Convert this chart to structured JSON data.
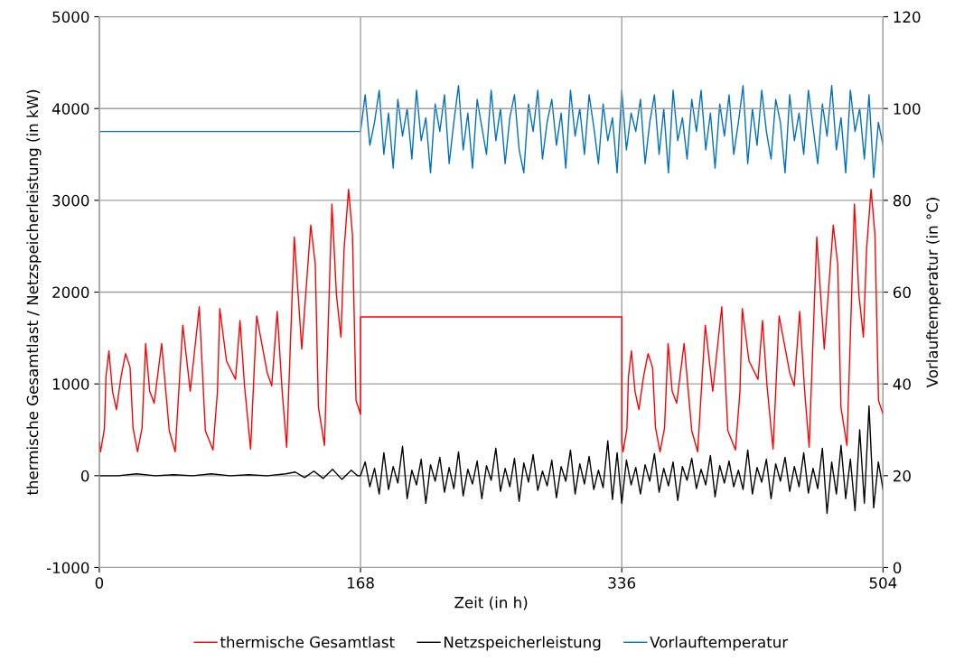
{
  "chart_data": {
    "type": "line",
    "xlabel": "Zeit (in h)",
    "ylabel": "thermische Gesamtlast / Netzspeicherleistung (in kW)",
    "y2label": "Vorlauftemperatur (in °C)",
    "xlim": [
      0,
      504
    ],
    "xticks": [
      0,
      168,
      336,
      504
    ],
    "ylim": [
      -1000,
      5000
    ],
    "yticks": [
      -1000,
      0,
      1000,
      2000,
      3000,
      4000,
      5000
    ],
    "y2lim": [
      0,
      120
    ],
    "y2ticks": [
      0,
      20,
      40,
      60,
      80,
      100,
      120
    ],
    "grid": true,
    "legend": "bottom",
    "marker": "none",
    "line_style": "solid",
    "series": [
      {
        "name": "thermische Gesamtlast",
        "color": "#ff0000",
        "x": [
          0,
          0.8,
          3.3,
          4.3,
          6.2,
          8.5,
          11,
          14,
          16.9,
          19.8,
          21.7,
          24.6,
          27.5,
          29.8,
          32.4,
          35.3,
          40.1,
          45,
          48.8,
          51.7,
          53.7,
          58.5,
          64.3,
          68.2,
          73.1,
          76,
          77.5,
          81.8,
          87.6,
          90.5,
          93.4,
          97.3,
          101.2,
          108,
          110.9,
          114.4,
          117.6,
          120.5,
          123.4,
          125.4,
          130.2,
          136,
          138.9,
          140.9,
          144.8,
          147.7,
          149.6,
          152.5,
          155.4,
          157.4,
          160.3,
          162.8,
          165.1,
          168,
          168,
          336,
          336,
          336.8,
          339.3,
          340.3,
          342.2,
          344.5,
          347,
          350,
          352.9,
          355.8,
          357.7,
          360.6,
          363.5,
          365.8,
          368.4,
          371.3,
          376.1,
          381,
          384.8,
          387.7,
          389.7,
          394.5,
          400.3,
          404.2,
          409.1,
          412,
          413.5,
          417.8,
          423.6,
          426.5,
          429.4,
          433.3,
          437.2,
          444,
          446.9,
          450.4,
          453.6,
          456.5,
          459.4,
          461.4,
          466.2,
          472,
          474.9,
          476.9,
          480.8,
          483.7,
          485.6,
          488.5,
          491.4,
          493.4,
          496.3,
          498.8,
          501.1,
          504
        ],
        "values": [
          360,
          260,
          510,
          1080,
          1360,
          920,
          720,
          1080,
          1330,
          1180,
          520,
          260,
          520,
          1440,
          920,
          790,
          1440,
          490,
          260,
          1080,
          1640,
          920,
          1840,
          490,
          280,
          920,
          1820,
          1250,
          1050,
          1690,
          980,
          290,
          1740,
          1120,
          980,
          1790,
          920,
          310,
          1670,
          2600,
          1380,
          2730,
          2300,
          750,
          330,
          1910,
          2960,
          1970,
          1510,
          2460,
          3120,
          2630,
          820,
          670,
          1730,
          1730,
          360,
          260,
          510,
          1080,
          1360,
          920,
          720,
          1080,
          1330,
          1180,
          520,
          260,
          520,
          1440,
          920,
          790,
          1440,
          490,
          260,
          1080,
          1640,
          920,
          1840,
          490,
          280,
          920,
          1820,
          1250,
          1050,
          1690,
          980,
          290,
          1740,
          1120,
          980,
          1790,
          920,
          310,
          1670,
          2600,
          1380,
          2730,
          2300,
          750,
          330,
          1910,
          2960,
          1970,
          1510,
          2460,
          3120,
          2630,
          820,
          670
        ]
      },
      {
        "name": "Netzspeicherleistung",
        "color": "#000000",
        "x": [
          0,
          12,
          24,
          36,
          48,
          60,
          72,
          84,
          96,
          108,
          120,
          126,
          132,
          138,
          144,
          150,
          156,
          162,
          166,
          168,
          171,
          174,
          177,
          180,
          183,
          186,
          189,
          192,
          195,
          198,
          201,
          204,
          207,
          210,
          213,
          216,
          219,
          222,
          225,
          228,
          231,
          234,
          237,
          240,
          243,
          246,
          249,
          252,
          255,
          258,
          261,
          264,
          267,
          270,
          273,
          276,
          279,
          282,
          285,
          288,
          291,
          294,
          297,
          300,
          303,
          306,
          309,
          312,
          315,
          318,
          321,
          324,
          327,
          330,
          333,
          336,
          339,
          342,
          345,
          348,
          351,
          354,
          357,
          360,
          363,
          366,
          369,
          372,
          375,
          378,
          381,
          384,
          387,
          390,
          393,
          396,
          399,
          402,
          405,
          408,
          411,
          414,
          417,
          420,
          423,
          426,
          429,
          432,
          435,
          438,
          441,
          444,
          447,
          450,
          453,
          456,
          459,
          462,
          465,
          468,
          471,
          474,
          477,
          480,
          483,
          486,
          489,
          492,
          495,
          498,
          501,
          504
        ],
        "values": [
          0,
          0,
          20,
          0,
          10,
          0,
          20,
          0,
          10,
          0,
          20,
          40,
          -20,
          50,
          -30,
          70,
          -40,
          60,
          0,
          0,
          150,
          -120,
          80,
          -200,
          250,
          -150,
          100,
          -80,
          320,
          -250,
          60,
          -100,
          180,
          -300,
          120,
          -60,
          200,
          -180,
          90,
          -140,
          260,
          -220,
          70,
          -90,
          160,
          -250,
          110,
          -50,
          300,
          -170,
          80,
          -120,
          190,
          -280,
          140,
          -70,
          230,
          -160,
          50,
          -110,
          170,
          -240,
          100,
          -60,
          280,
          -200,
          130,
          -90,
          210,
          -150,
          60,
          -130,
          380,
          -260,
          250,
          -300,
          170,
          -100,
          90,
          -200,
          120,
          -60,
          240,
          -180,
          80,
          -110,
          150,
          -270,
          100,
          -50,
          190,
          -140,
          70,
          -100,
          220,
          -230,
          110,
          -80,
          160,
          -120,
          60,
          -150,
          280,
          -200,
          90,
          -70,
          180,
          -250,
          130,
          -60,
          200,
          -170,
          100,
          -120,
          250,
          -190,
          80,
          -140,
          300,
          -410,
          150,
          -200,
          330,
          -250,
          180,
          -380,
          500,
          -300,
          760,
          -350,
          150,
          -150
        ]
      },
      {
        "name": "Vorlauftemperatur",
        "color": "#0070c0",
        "axis": "y2",
        "x": [
          0,
          168,
          171,
          174,
          177,
          180,
          183,
          186,
          189,
          192,
          195,
          198,
          201,
          204,
          207,
          210,
          213,
          216,
          219,
          222,
          225,
          228,
          231,
          234,
          237,
          240,
          243,
          246,
          249,
          252,
          255,
          258,
          261,
          264,
          267,
          270,
          273,
          276,
          279,
          282,
          285,
          288,
          291,
          294,
          297,
          300,
          303,
          306,
          309,
          312,
          315,
          318,
          321,
          324,
          327,
          330,
          333,
          336,
          339,
          342,
          345,
          348,
          351,
          354,
          357,
          360,
          363,
          366,
          369,
          372,
          375,
          378,
          381,
          384,
          387,
          390,
          393,
          396,
          399,
          402,
          405,
          408,
          411,
          414,
          417,
          420,
          423,
          426,
          429,
          432,
          435,
          438,
          441,
          444,
          447,
          450,
          453,
          456,
          459,
          462,
          465,
          468,
          471,
          474,
          477,
          480,
          483,
          486,
          489,
          492,
          495,
          498,
          501,
          504
        ],
        "values": [
          95,
          95,
          103,
          92,
          97,
          104,
          90,
          99,
          87,
          102,
          94,
          100,
          89,
          104,
          93,
          98,
          86,
          101,
          95,
          103,
          88,
          97,
          105,
          91,
          99,
          87,
          102,
          96,
          90,
          104,
          93,
          100,
          88,
          98,
          103,
          91,
          86,
          101,
          95,
          104,
          89,
          97,
          102,
          92,
          99,
          87,
          104,
          94,
          100,
          90,
          103,
          96,
          88,
          101,
          93,
          98,
          86,
          104,
          91,
          99,
          95,
          102,
          88,
          97,
          103,
          90,
          100,
          86,
          104,
          93,
          98,
          89,
          102,
          95,
          104,
          91,
          99,
          87,
          101,
          94,
          103,
          90,
          97,
          105,
          88,
          100,
          92,
          104,
          95,
          89,
          102,
          97,
          86,
          103,
          93,
          99,
          90,
          104,
          96,
          88,
          101,
          94,
          105,
          91,
          98,
          86,
          104,
          95,
          100,
          89,
          103,
          85,
          97,
          92
        ]
      }
    ]
  }
}
